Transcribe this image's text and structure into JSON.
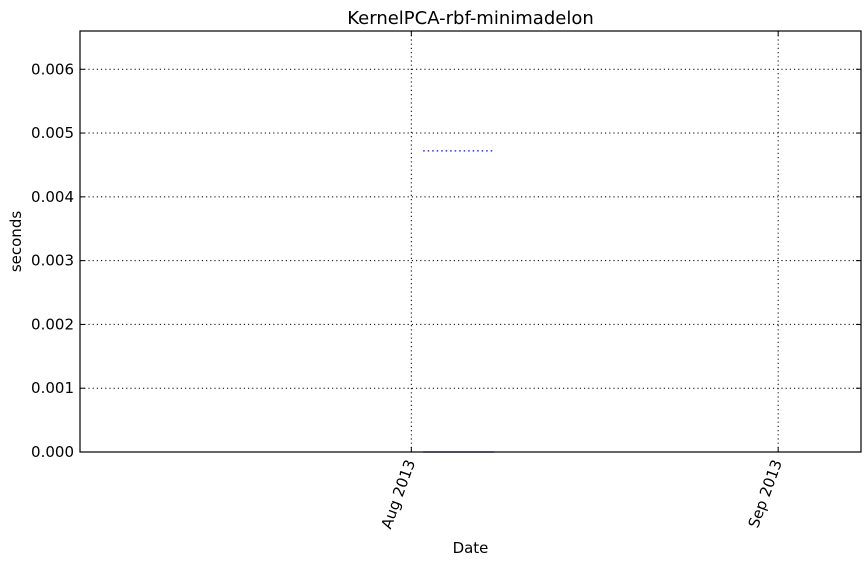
{
  "chart_data": {
    "type": "line",
    "title": "KernelPCA-rbf-minimadelon",
    "xlabel": "Date",
    "ylabel": "seconds",
    "x_type": "date",
    "xlim": [
      "2013-07-04",
      "2013-09-08"
    ],
    "ylim": [
      0,
      0.0066
    ],
    "x_ticks": [
      {
        "value": "2013-08-01",
        "label": "Aug 2013"
      },
      {
        "value": "2013-09-01",
        "label": "Sep 2013"
      }
    ],
    "y_ticks": [
      {
        "value": 0.0,
        "label": "0.000"
      },
      {
        "value": 0.001,
        "label": "0.001"
      },
      {
        "value": 0.002,
        "label": "0.002"
      },
      {
        "value": 0.003,
        "label": "0.003"
      },
      {
        "value": 0.004,
        "label": "0.004"
      },
      {
        "value": 0.005,
        "label": "0.005"
      },
      {
        "value": 0.006,
        "label": "0.006"
      }
    ],
    "grid": true,
    "series": [
      {
        "color": "#0000ff",
        "line_style": "dotted",
        "x": [
          "2013-08-02",
          "2013-08-08"
        ],
        "y": [
          0.00472,
          0.00472
        ]
      },
      {
        "color": "#0000ff",
        "line_style": "solid",
        "x": [
          "2013-08-02",
          "2013-08-08"
        ],
        "y": [
          0.0,
          0.0
        ]
      }
    ]
  }
}
